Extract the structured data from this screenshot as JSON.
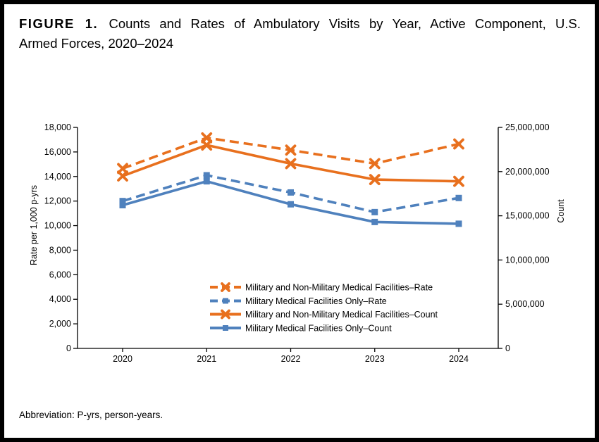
{
  "figure": {
    "label": "FIGURE 1.",
    "title_line1": "Counts and Rates of Ambulatory Visits by Year, Active Component, U.S.",
    "title_line2": "Armed Forces, 2020–2024",
    "abbreviation": "Abbreviation: P-yrs, person-years."
  },
  "colors": {
    "orange": "#E8701E",
    "blue": "#4F81BD",
    "axis": "#000000"
  },
  "chart_data": {
    "type": "line",
    "categories": [
      "2020",
      "2021",
      "2022",
      "2023",
      "2024"
    ],
    "left_axis": {
      "label": "Rate per 1,000 p-yrs",
      "min": 0,
      "max": 18000,
      "step": 2000
    },
    "right_axis": {
      "label": "Count",
      "min": 0,
      "max": 25000000,
      "step": 5000000
    },
    "grid": false,
    "legend_position": "inside-bottom-center",
    "series": [
      {
        "name": "Military and Non-Military Medical Facilities–Rate",
        "axis": "left",
        "color": "orange",
        "style": "dashed",
        "marker": "x",
        "values": [
          14650,
          17150,
          16150,
          15050,
          16650
        ]
      },
      {
        "name": "Military Medical Facilities Only–Rate",
        "axis": "left",
        "color": "blue",
        "style": "dashed",
        "marker": "square",
        "values": [
          12000,
          14100,
          12700,
          11100,
          12250
        ]
      },
      {
        "name": "Military and Non-Military Medical Facilities–Count",
        "axis": "right",
        "color": "orange",
        "style": "solid",
        "marker": "x",
        "values": [
          19500000,
          23000000,
          20900000,
          19100000,
          18900000
        ]
      },
      {
        "name": "Military Medical Facilities Only–Count",
        "axis": "right",
        "color": "blue",
        "style": "solid",
        "marker": "square",
        "values": [
          16200000,
          18900000,
          16300000,
          14300000,
          14100000
        ]
      }
    ]
  }
}
